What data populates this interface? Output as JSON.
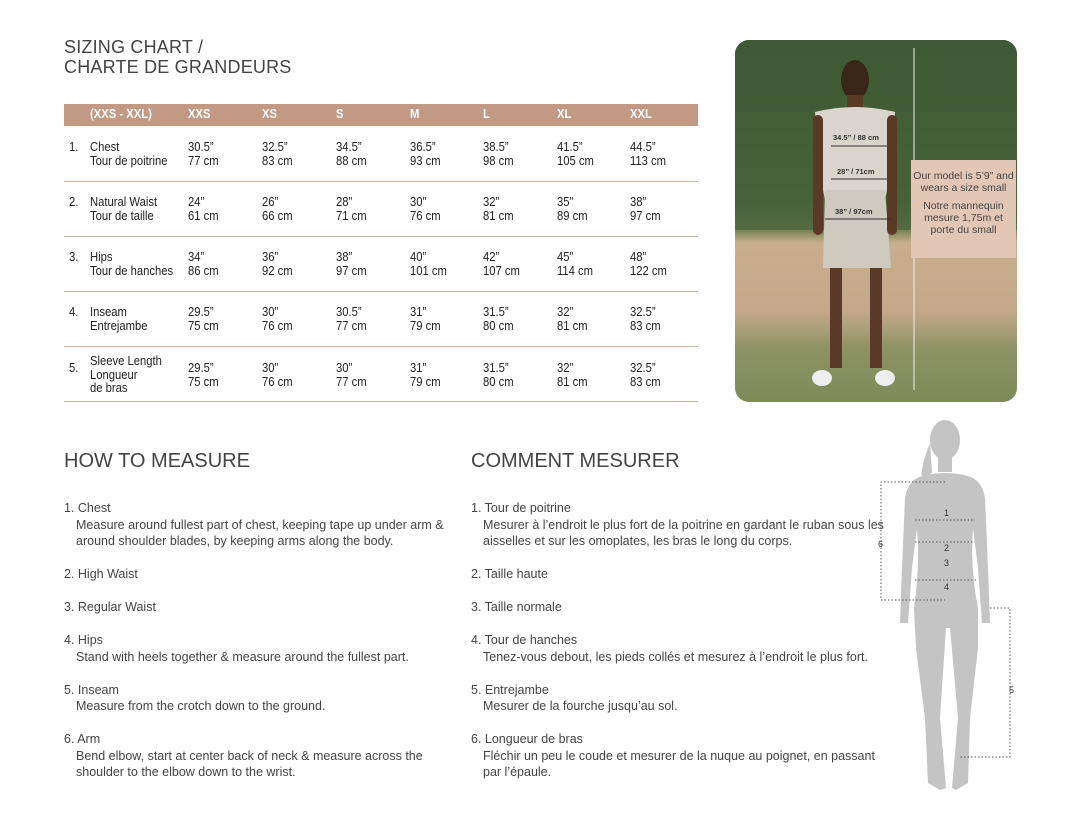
{
  "title": [
    "SIZING CHART /",
    "CHARTE DE GRANDEURS"
  ],
  "table": {
    "header": [
      "(XXS - XXL)",
      "XXS",
      "XS",
      "S",
      "M",
      "L",
      "XL",
      "XXL"
    ],
    "accent_color": "#c29a83",
    "rows": [
      {
        "num": "1.",
        "label": [
          "Chest",
          "Tour de poitrine"
        ],
        "values": [
          [
            "30.5”",
            "77 cm"
          ],
          [
            "32.5”",
            "83 cm"
          ],
          [
            "34.5”",
            "88 cm"
          ],
          [
            "36.5”",
            "93 cm"
          ],
          [
            "38.5”",
            "98 cm"
          ],
          [
            "41.5”",
            "105 cm"
          ],
          [
            "44.5”",
            "113 cm"
          ]
        ]
      },
      {
        "num": "2.",
        "label": [
          "Natural Waist",
          "Tour de taille"
        ],
        "values": [
          [
            "24”",
            "61 cm"
          ],
          [
            "26”",
            "66 cm"
          ],
          [
            "28”",
            "71 cm"
          ],
          [
            "30”",
            "76 cm"
          ],
          [
            "32”",
            "81 cm"
          ],
          [
            "35”",
            "89 cm"
          ],
          [
            "38”",
            "97 cm"
          ]
        ]
      },
      {
        "num": "3.",
        "label": [
          "Hips",
          "Tour de hanches"
        ],
        "values": [
          [
            "34”",
            "86 cm"
          ],
          [
            "36”",
            "92 cm"
          ],
          [
            "38”",
            "97 cm"
          ],
          [
            "40”",
            "101 cm"
          ],
          [
            "42”",
            "107 cm"
          ],
          [
            "45”",
            "114 cm"
          ],
          [
            "48”",
            "122 cm"
          ]
        ]
      },
      {
        "num": "4.",
        "label": [
          "Inseam",
          "Entrejambe"
        ],
        "values": [
          [
            "29.5”",
            "75 cm"
          ],
          [
            "30”",
            "76 cm"
          ],
          [
            "30.5”",
            "77 cm"
          ],
          [
            "31”",
            "79 cm"
          ],
          [
            "31.5”",
            "80 cm"
          ],
          [
            "32”",
            "81 cm"
          ],
          [
            "32.5”",
            "83 cm"
          ]
        ]
      },
      {
        "num": "5.",
        "label": [
          "Sleeve Length",
          "Longueur",
          "de bras"
        ],
        "values": [
          [
            "29.5”",
            "75 cm"
          ],
          [
            "30”",
            "76 cm"
          ],
          [
            "30”",
            "77 cm"
          ],
          [
            "31”",
            "79 cm"
          ],
          [
            "31.5”",
            "80 cm"
          ],
          [
            "32”",
            "81 cm"
          ],
          [
            "32.5”",
            "83 cm"
          ]
        ]
      }
    ]
  },
  "photo": {
    "measures": [
      "34.5” / 88 cm",
      "28” / 71cm",
      "38” / 97cm"
    ],
    "callout_en": "Our model is 5’9” and wears a size small",
    "callout_fr": "Notre mannequin mesure 1,75m et porte du small"
  },
  "how_to_measure": {
    "heading": "HOW TO MEASURE",
    "items": [
      {
        "title": "1. Chest",
        "desc": "Measure around fullest part of chest, keeping tape up under arm & around shoulder blades, by keeping arms along the body."
      },
      {
        "title": "2. High Waist",
        "desc": ""
      },
      {
        "title": "3. Regular Waist",
        "desc": ""
      },
      {
        "title": "4. Hips",
        "desc": "Stand with heels together & measure around the fullest part."
      },
      {
        "title": "5. Inseam",
        "desc": "Measure from the crotch down to the ground."
      },
      {
        "title": "6. Arm",
        "desc": "Bend elbow, start at center back of neck & measure across the shoulder to the elbow down to the wrist."
      }
    ]
  },
  "comment_mesurer": {
    "heading": "COMMENT MESURER",
    "items": [
      {
        "title": "1. Tour de poitrine",
        "desc": "Mesurer à l’endroit le plus fort de la poitrine en gardant le ruban sous les aisselles et sur les omoplates, les bras le long du corps."
      },
      {
        "title": "2. Taille haute",
        "desc": ""
      },
      {
        "title": "3. Taille normale",
        "desc": ""
      },
      {
        "title": "4. Tour de hanches",
        "desc": "Tenez-vous debout, les pieds collés et mesurez à l’endroit le plus fort."
      },
      {
        "title": "5. Entrejambe",
        "desc": "Mesurer de la fourche jusqu’au sol."
      },
      {
        "title": "6. Longueur de bras",
        "desc": "Fléchir un peu le coude et mesurer de la nuque au poignet, en passant par l’épaule."
      }
    ]
  },
  "silhouette": {
    "labels": [
      "1",
      "2",
      "3",
      "4",
      "5",
      "6"
    ]
  }
}
